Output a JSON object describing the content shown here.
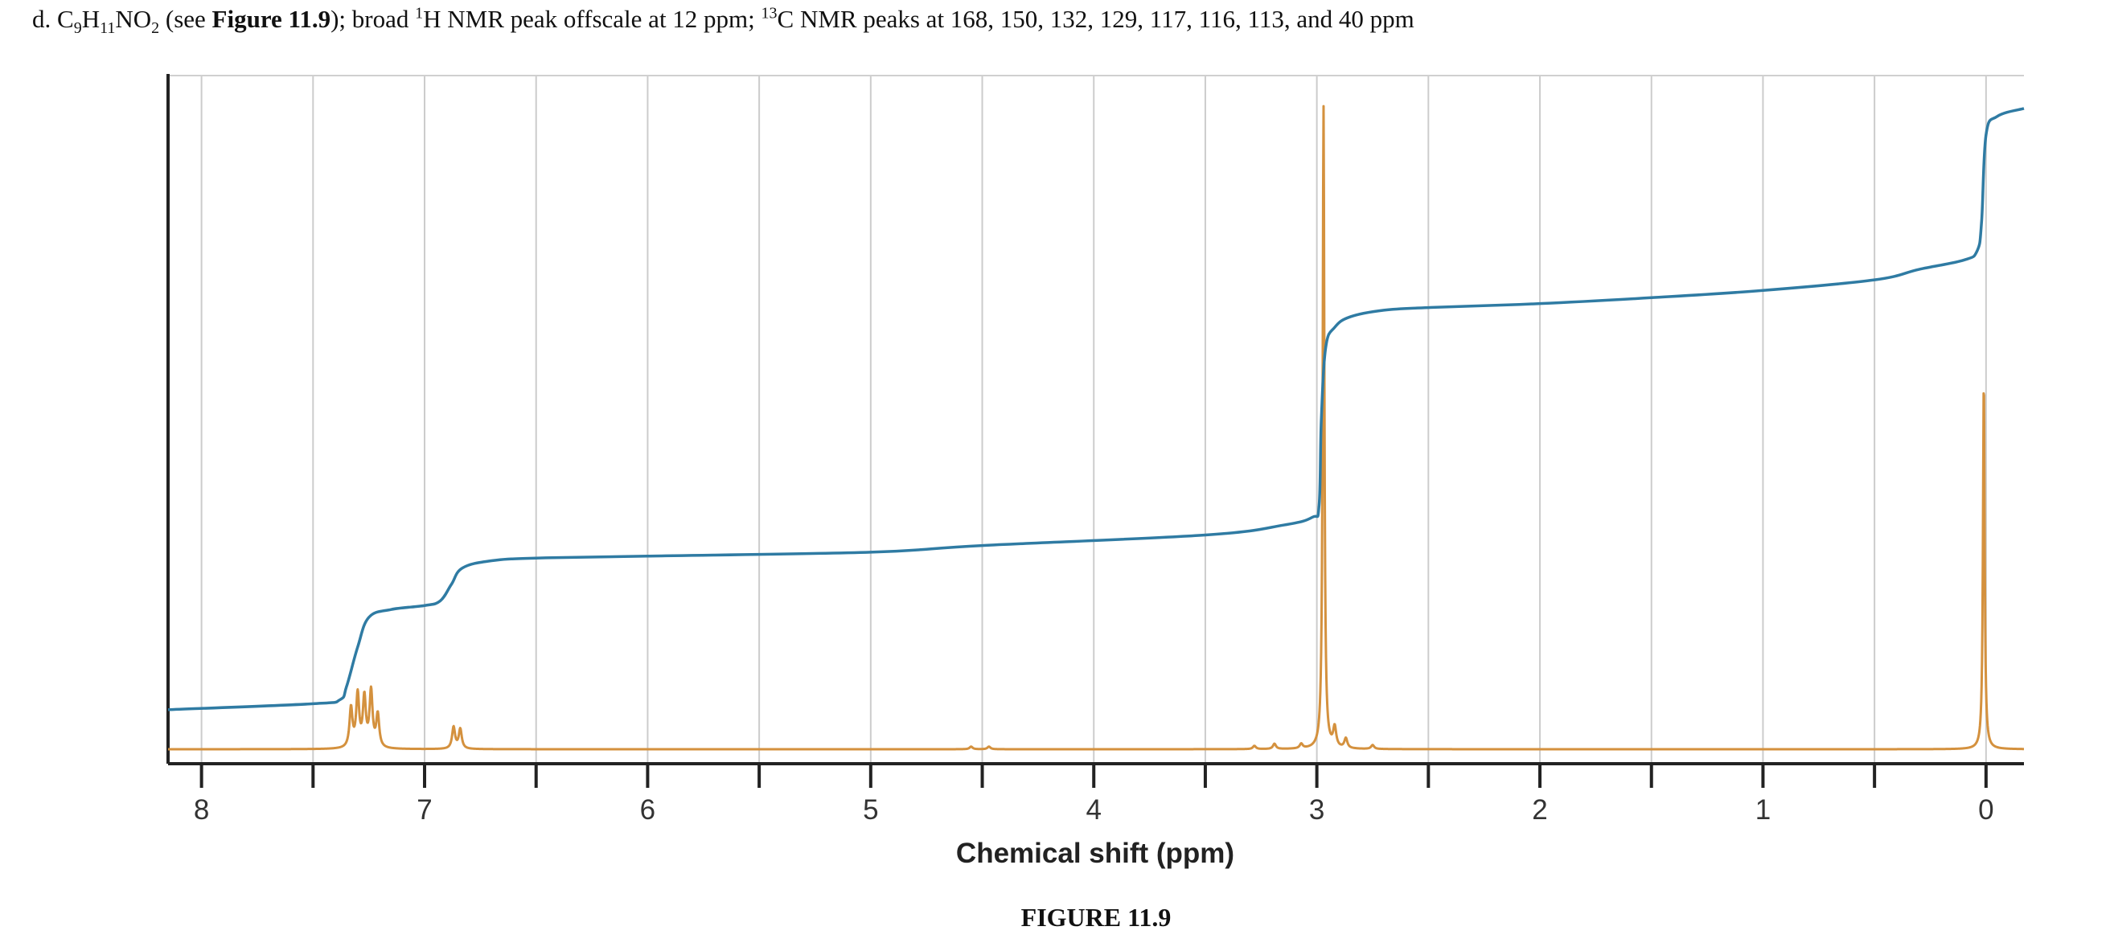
{
  "problem": {
    "label": "d.",
    "formula_parts": [
      "C",
      "9",
      "H",
      "11",
      "NO",
      "2"
    ],
    "see_open": "(see ",
    "figure_ref": "Figure 11.9",
    "see_close": "); broad ",
    "h_sup": "1",
    "h_text": "H NMR peak offscale at 12 ppm; ",
    "c_sup": "13",
    "c_text": "C NMR peaks at 168, 150, 132, 129, 117, 116, 113, and 40 ppm"
  },
  "figure_caption": "FIGURE 11.9",
  "chart_data": {
    "type": "line",
    "title": "",
    "xlabel": "Chemical shift (ppm)",
    "ylabel": "",
    "x_reversed": true,
    "xlim": [
      8.15,
      -0.17
    ],
    "ylim": [
      0,
      100
    ],
    "x_ticks": [
      8,
      7,
      6,
      5,
      4,
      3,
      2,
      1,
      0
    ],
    "minor_ticks": [
      7.5,
      6.5,
      5.5,
      4.5,
      3.5,
      2.5,
      1.5,
      0.5
    ],
    "grid": true,
    "colors": {
      "spectrum": "#d4913e",
      "integral": "#2f7ba3",
      "grid": "#cccccc",
      "axis": "#222222"
    },
    "series": [
      {
        "role": "spectrum",
        "peaks": [
          {
            "ppm": 7.33,
            "height": 6.0
          },
          {
            "ppm": 7.3,
            "height": 8.0
          },
          {
            "ppm": 7.27,
            "height": 7.5
          },
          {
            "ppm": 7.24,
            "height": 8.5
          },
          {
            "ppm": 7.21,
            "height": 5.0
          },
          {
            "ppm": 6.87,
            "height": 3.3
          },
          {
            "ppm": 6.84,
            "height": 3.0
          },
          {
            "ppm": 4.55,
            "height": 0.4
          },
          {
            "ppm": 4.47,
            "height": 0.4
          },
          {
            "ppm": 3.28,
            "height": 0.5
          },
          {
            "ppm": 3.19,
            "height": 0.8
          },
          {
            "ppm": 3.07,
            "height": 0.7
          },
          {
            "ppm": 2.97,
            "height": 97.5
          },
          {
            "ppm": 2.92,
            "height": 3.0
          },
          {
            "ppm": 2.87,
            "height": 1.5
          },
          {
            "ppm": 2.75,
            "height": 0.6
          },
          {
            "ppm": 0.01,
            "height": 56.0
          }
        ]
      },
      {
        "role": "integral",
        "points": [
          [
            8.15,
            6.0
          ],
          [
            7.5,
            6.9
          ],
          [
            7.38,
            7.5
          ],
          [
            7.35,
            9.5
          ],
          [
            7.3,
            15.5
          ],
          [
            7.25,
            20.0
          ],
          [
            7.15,
            21.2
          ],
          [
            7.0,
            21.8
          ],
          [
            6.93,
            22.5
          ],
          [
            6.88,
            25.0
          ],
          [
            6.83,
            27.5
          ],
          [
            6.7,
            28.6
          ],
          [
            6.5,
            29.0
          ],
          [
            6.0,
            29.3
          ],
          [
            5.0,
            29.9
          ],
          [
            4.5,
            30.9
          ],
          [
            3.5,
            32.5
          ],
          [
            3.15,
            34.0
          ],
          [
            3.02,
            35.2
          ],
          [
            2.99,
            37.0
          ],
          [
            2.98,
            50.0
          ],
          [
            2.96,
            61.0
          ],
          [
            2.92,
            64.0
          ],
          [
            2.85,
            65.6
          ],
          [
            2.7,
            66.6
          ],
          [
            2.5,
            67.0
          ],
          [
            2.0,
            67.6
          ],
          [
            1.5,
            68.5
          ],
          [
            1.0,
            69.6
          ],
          [
            0.5,
            71.2
          ],
          [
            0.3,
            72.8
          ],
          [
            0.1,
            74.2
          ],
          [
            0.04,
            75.6
          ],
          [
            0.02,
            80.0
          ],
          [
            0.0,
            93.2
          ],
          [
            -0.05,
            96.0
          ],
          [
            -0.17,
            97.2
          ]
        ]
      }
    ]
  }
}
